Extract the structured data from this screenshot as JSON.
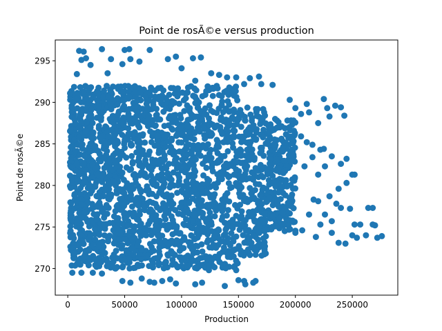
{
  "chart_data": {
    "type": "scatter",
    "title": "Point de rosÃ©e versus production",
    "xlabel": "Production",
    "ylabel": "Point de rosÃ©e",
    "xlim": [
      -11000,
      290000
    ],
    "ylim": [
      266.8,
      297.5
    ],
    "xticks": [
      0,
      50000,
      100000,
      150000,
      200000,
      250000
    ],
    "xtick_labels": [
      "0",
      "50000",
      "100000",
      "150000",
      "200000",
      "250000"
    ],
    "yticks": [
      270,
      275,
      280,
      285,
      290,
      295
    ],
    "ytick_labels": [
      "270",
      "275",
      "280",
      "285",
      "290",
      "295"
    ],
    "grid": false,
    "point_color": "#1f77b4",
    "series": [
      {
        "points": [
          [
            10000,
            296.2
          ],
          [
            14000,
            296.1
          ],
          [
            30000,
            296.4
          ],
          [
            50000,
            296.3
          ],
          [
            54000,
            296.4
          ],
          [
            72000,
            296.3
          ],
          [
            12000,
            295.1
          ],
          [
            16000,
            295.3
          ],
          [
            38000,
            295.2
          ],
          [
            55000,
            295.2
          ],
          [
            88000,
            295.2
          ],
          [
            95000,
            295.5
          ],
          [
            110000,
            295.3
          ],
          [
            117000,
            295.4
          ],
          [
            63000,
            294.9
          ],
          [
            100000,
            294.1
          ],
          [
            20000,
            294.5
          ],
          [
            48000,
            294.6
          ],
          [
            126000,
            293.5
          ],
          [
            133000,
            293.3
          ],
          [
            148000,
            293.0
          ],
          [
            160000,
            292.9
          ],
          [
            168000,
            293.1
          ],
          [
            170000,
            292.2
          ],
          [
            155000,
            292.2
          ],
          [
            180000,
            292.1
          ],
          [
            8000,
            293.4
          ],
          [
            35000,
            293.5
          ],
          [
            112000,
            292.6
          ],
          [
            140000,
            293.0
          ],
          [
            210000,
            289.8
          ],
          [
            225000,
            290.4
          ],
          [
            228000,
            289.3
          ],
          [
            235000,
            289.6
          ],
          [
            240000,
            289.4
          ],
          [
            243000,
            288.4
          ],
          [
            205000,
            288.6
          ],
          [
            212000,
            288.8
          ],
          [
            220000,
            287.5
          ],
          [
            230000,
            288.3
          ],
          [
            195000,
            290.3
          ],
          [
            200000,
            289.3
          ],
          [
            205000,
            285.9
          ],
          [
            210000,
            285.2
          ],
          [
            215000,
            284.9
          ],
          [
            222000,
            284.3
          ],
          [
            225000,
            284.4
          ],
          [
            232000,
            283.5
          ],
          [
            240000,
            282.6
          ],
          [
            245000,
            283.2
          ],
          [
            215000,
            283.4
          ],
          [
            208000,
            282.3
          ],
          [
            220000,
            281.3
          ],
          [
            226000,
            282.3
          ],
          [
            250000,
            281.3
          ],
          [
            252000,
            281.3
          ],
          [
            245000,
            280.3
          ],
          [
            238000,
            279.6
          ],
          [
            230000,
            278.7
          ],
          [
            216000,
            278.3
          ],
          [
            220000,
            278.1
          ],
          [
            236000,
            277.8
          ],
          [
            240000,
            277.3
          ],
          [
            248000,
            277.2
          ],
          [
            264000,
            277.3
          ],
          [
            268000,
            277.3
          ],
          [
            226000,
            276.5
          ],
          [
            232000,
            275.7
          ],
          [
            212000,
            276.5
          ],
          [
            222000,
            275.3
          ],
          [
            252000,
            275.3
          ],
          [
            257000,
            275.3
          ],
          [
            268000,
            275.3
          ],
          [
            270000,
            275.2
          ],
          [
            206000,
            274.6
          ],
          [
            218000,
            273.8
          ],
          [
            232000,
            274.3
          ],
          [
            238000,
            273.1
          ],
          [
            244000,
            273.0
          ],
          [
            250000,
            274.0
          ],
          [
            254000,
            273.7
          ],
          [
            262000,
            274.0
          ],
          [
            272000,
            273.7
          ],
          [
            276000,
            273.9
          ],
          [
            195000,
            275.8
          ],
          [
            200000,
            274.3
          ],
          [
            188000,
            275.4
          ],
          [
            180000,
            276.3
          ],
          [
            174000,
            274.7
          ],
          [
            165000,
            273.8
          ],
          [
            158000,
            273.5
          ],
          [
            146000,
            272.2
          ],
          [
            152000,
            271.7
          ],
          [
            166000,
            272.2
          ],
          [
            126000,
            271.0
          ],
          [
            136000,
            270.5
          ],
          [
            148000,
            269.8
          ],
          [
            150000,
            268.6
          ],
          [
            155000,
            268.5
          ],
          [
            165000,
            268.5
          ],
          [
            163000,
            268.3
          ],
          [
            156000,
            268.1
          ],
          [
            138000,
            267.9
          ],
          [
            112000,
            268.1
          ],
          [
            118000,
            268.3
          ],
          [
            95000,
            268.2
          ],
          [
            90000,
            268.7
          ],
          [
            83000,
            268.5
          ],
          [
            76000,
            268.3
          ],
          [
            72000,
            268.4
          ],
          [
            65000,
            268.8
          ],
          [
            55000,
            268.3
          ],
          [
            48000,
            268.5
          ],
          [
            30000,
            269.4
          ],
          [
            22000,
            269.5
          ],
          [
            12000,
            269.5
          ],
          [
            4000,
            269.5
          ],
          [
            42000,
            270.0
          ],
          [
            62000,
            270.4
          ],
          [
            100000,
            270.3
          ],
          [
            115000,
            270.2
          ],
          [
            124000,
            269.8
          ],
          [
            6000,
            271.8
          ],
          [
            24000,
            271.1
          ],
          [
            35000,
            270.8
          ],
          [
            50000,
            271.0
          ]
        ]
      }
    ],
    "dense_region": {
      "description": "heavy overlap band",
      "x_range": [
        2000,
        200000
      ],
      "y_range": [
        270,
        292
      ]
    }
  }
}
